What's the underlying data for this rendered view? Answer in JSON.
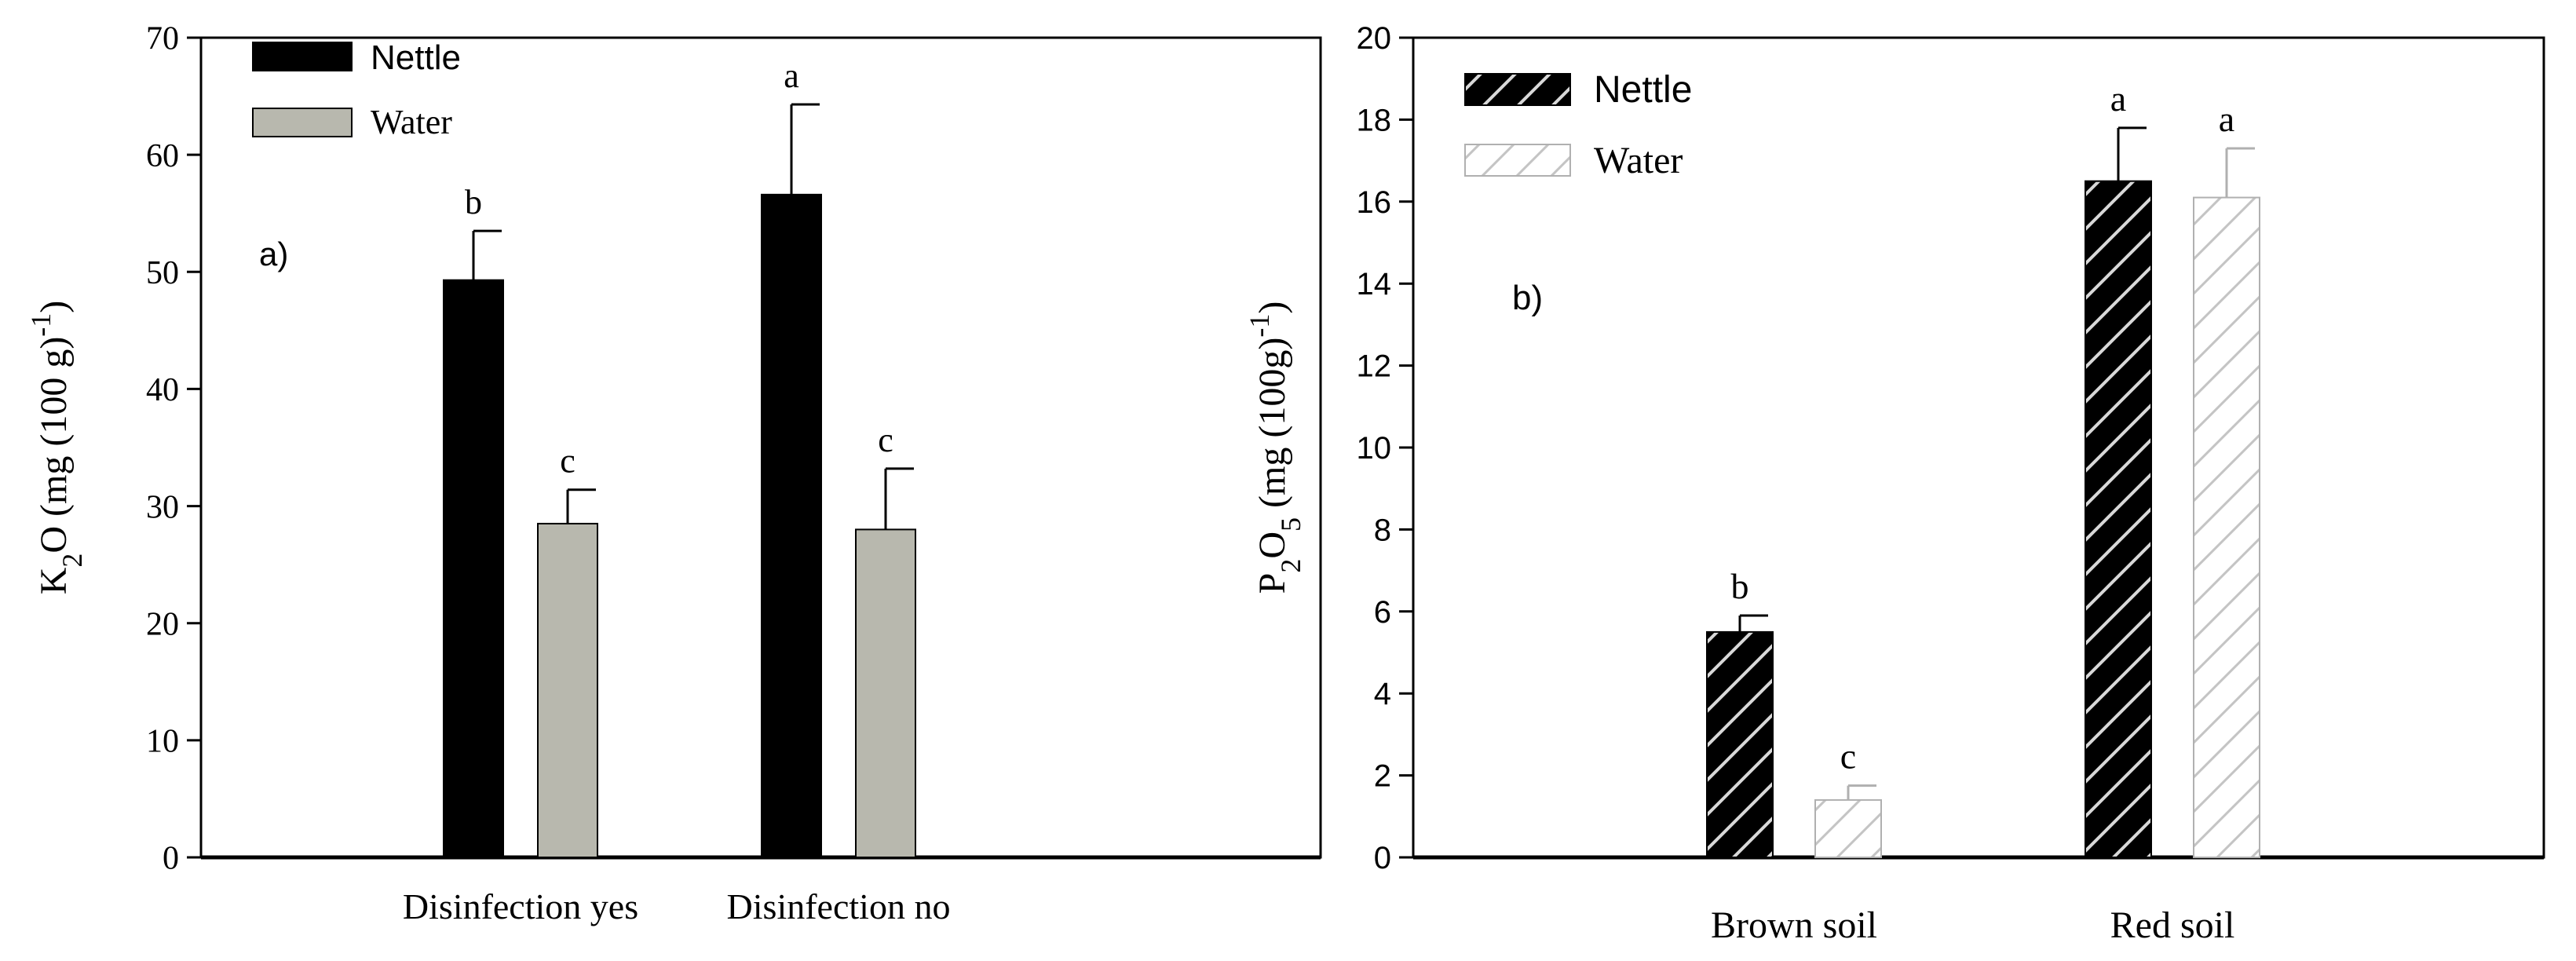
{
  "chart_data": [
    {
      "type": "bar",
      "panel_label": "a)",
      "title": "",
      "xlabel": "",
      "ylabel_parts": [
        "K",
        "2",
        "O (mg (100 g)",
        "-1",
        ")"
      ],
      "categories": [
        "Disinfection yes",
        "Disinfection no"
      ],
      "series": [
        {
          "name": "Nettle",
          "values": [
            49.3,
            56.6
          ],
          "errors": [
            4.2,
            7.7
          ],
          "letters": [
            "b",
            "a"
          ],
          "color": "#000000",
          "pattern": "solid"
        },
        {
          "name": "Water",
          "values": [
            28.5,
            28.0
          ],
          "errors": [
            2.9,
            5.2
          ],
          "letters": [
            "c",
            "c"
          ],
          "color": "#b8b8ae",
          "pattern": "solid"
        }
      ],
      "ylim": [
        0,
        70
      ],
      "yticks": [
        0,
        10,
        20,
        30,
        40,
        50,
        60,
        70
      ],
      "legend_position": "top-left",
      "grid": false
    },
    {
      "type": "bar",
      "panel_label": "b)",
      "title": "",
      "xlabel": "",
      "ylabel_parts": [
        "P",
        "2",
        "O",
        "5",
        " (mg (100g)",
        "-1",
        ")"
      ],
      "categories": [
        "Brown soil",
        "Red soil"
      ],
      "series": [
        {
          "name": "Nettle",
          "values": [
            5.5,
            16.5
          ],
          "errors": [
            0.4,
            1.3
          ],
          "letters": [
            "b",
            "a"
          ],
          "color": "#000000",
          "pattern": "hatch-on-black"
        },
        {
          "name": "Water",
          "values": [
            1.4,
            16.1
          ],
          "errors": [
            0.35,
            1.2
          ],
          "letters": [
            "c",
            "a"
          ],
          "color": "#ffffff",
          "pattern": "hatch-on-white"
        }
      ],
      "ylim": [
        0,
        20
      ],
      "yticks": [
        0,
        2,
        4,
        6,
        8,
        10,
        12,
        14,
        16,
        18,
        20
      ],
      "legend_position": "top-left",
      "grid": false
    }
  ]
}
